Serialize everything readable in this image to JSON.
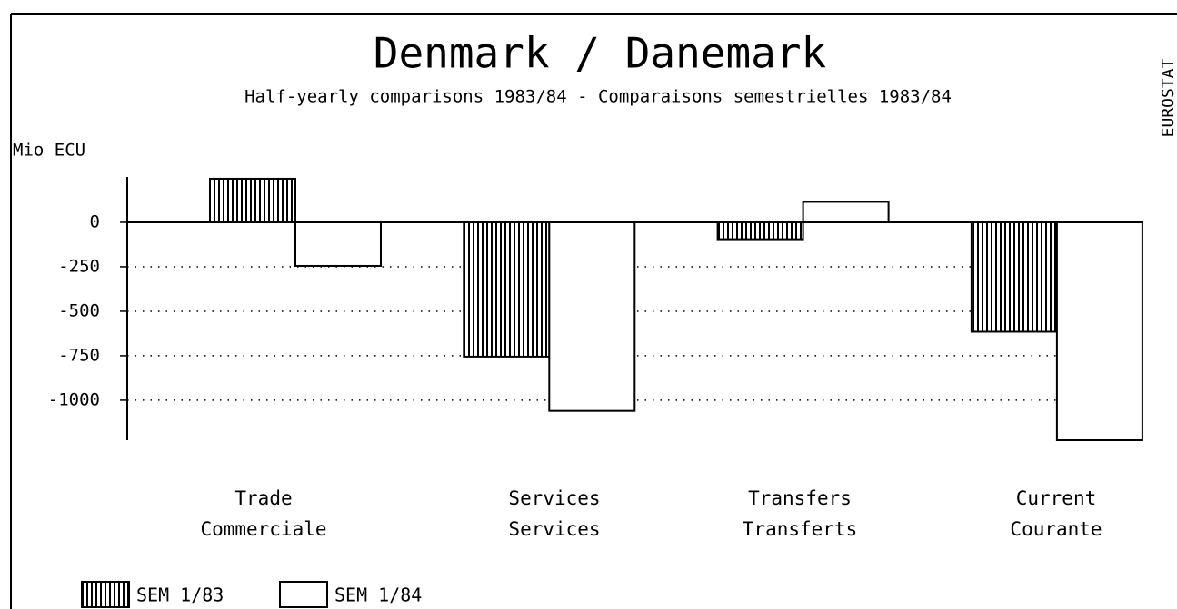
{
  "chart_data": {
    "type": "bar",
    "title": "Denmark / Danemark",
    "subtitle": "Half-yearly comparisons 1983/84 - Comparaisons semestrielles 1983/84",
    "y_label": "Mio ECU",
    "source": "EUROSTAT",
    "categories": [
      [
        "Trade",
        "Commerciale"
      ],
      [
        "Services",
        "Services"
      ],
      [
        "Transfers",
        "Transferts"
      ],
      [
        "Current",
        "Courante"
      ]
    ],
    "series": [
      {
        "name": "SEM 1/83",
        "color": "#000000",
        "hatch": true,
        "values": [
          245,
          -755,
          -95,
          -615
        ]
      },
      {
        "name": "SEM 1/84",
        "color": "#000000",
        "hatch": false,
        "values": [
          -245,
          -1060,
          115,
          -1225
        ]
      }
    ],
    "ylim": [
      -1225,
      255
    ],
    "yticks": [
      0,
      -250,
      -500,
      -750,
      -1000
    ],
    "grid": true
  }
}
